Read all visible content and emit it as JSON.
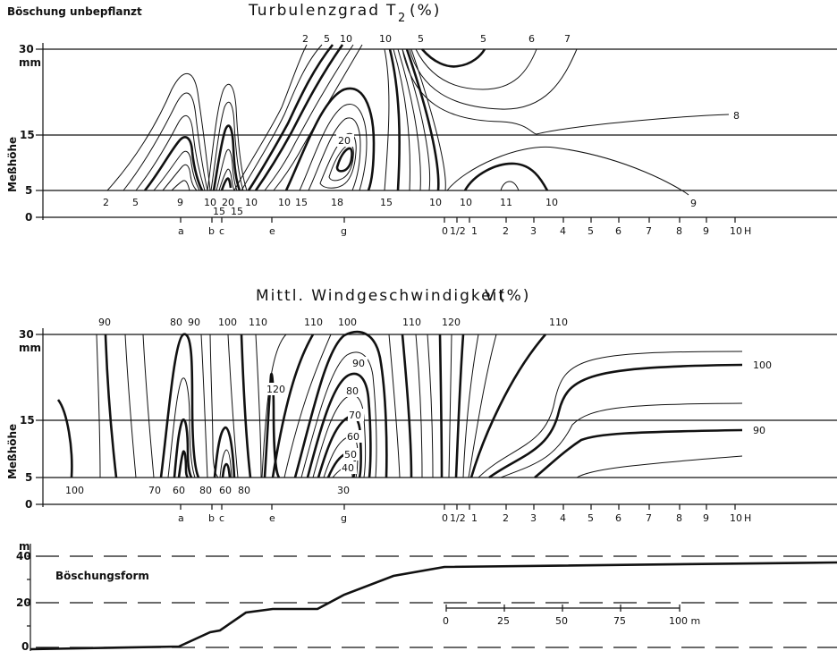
{
  "top_left_label": "Böschung unbepflanzt",
  "panel1": {
    "title": "Turbulenzgrad",
    "symbol": "T",
    "subscript": "2",
    "unit": "(%)",
    "y_ticks": [
      "30",
      "mm",
      "15",
      "5",
      "0"
    ],
    "y_axis_label": "Meßhöhe",
    "bottom_values": [
      "2",
      "5",
      "9",
      "10",
      "15",
      "20",
      "15",
      "10",
      "10",
      "15",
      "18",
      "15",
      "10",
      "10",
      "11",
      "10",
      "9"
    ],
    "top_values": [
      "2",
      "5",
      "10",
      "10",
      "5",
      "5",
      "6",
      "7"
    ],
    "inner_labels": [
      "20",
      "8"
    ],
    "positions": [
      "a",
      "b",
      "c",
      "e",
      "g"
    ],
    "distance_ticks": [
      "0",
      "1/2",
      "1",
      "2",
      "3",
      "4",
      "5",
      "6",
      "7",
      "8",
      "9",
      "10",
      "H"
    ]
  },
  "panel2": {
    "title": "Mittl. Windgeschwindigkeit",
    "symbol": "V",
    "unit": "(%)",
    "y_ticks": [
      "30",
      "mm",
      "15",
      "5",
      "0"
    ],
    "y_axis_label": "Meßhöhe",
    "top_values": [
      "90",
      "80",
      "90",
      "100",
      "110",
      "110",
      "100",
      "110",
      "120",
      "110"
    ],
    "bottom_values": [
      "100",
      "70",
      "60",
      "80",
      "60",
      "80",
      "30"
    ],
    "inner_labels": [
      "120",
      "90",
      "80",
      "70",
      "60",
      "50",
      "40",
      "100",
      "90"
    ],
    "positions": [
      "a",
      "b",
      "c",
      "e",
      "g"
    ],
    "distance_ticks": [
      "0",
      "1/2",
      "1",
      "2",
      "3",
      "4",
      "5",
      "6",
      "7",
      "8",
      "9",
      "10",
      "H"
    ]
  },
  "panel3": {
    "unit": "m",
    "y_ticks": [
      "40",
      "20",
      "0"
    ],
    "label": "Böschungsform",
    "scale_ticks": [
      "0",
      "25",
      "50",
      "75",
      "100 m"
    ]
  }
}
